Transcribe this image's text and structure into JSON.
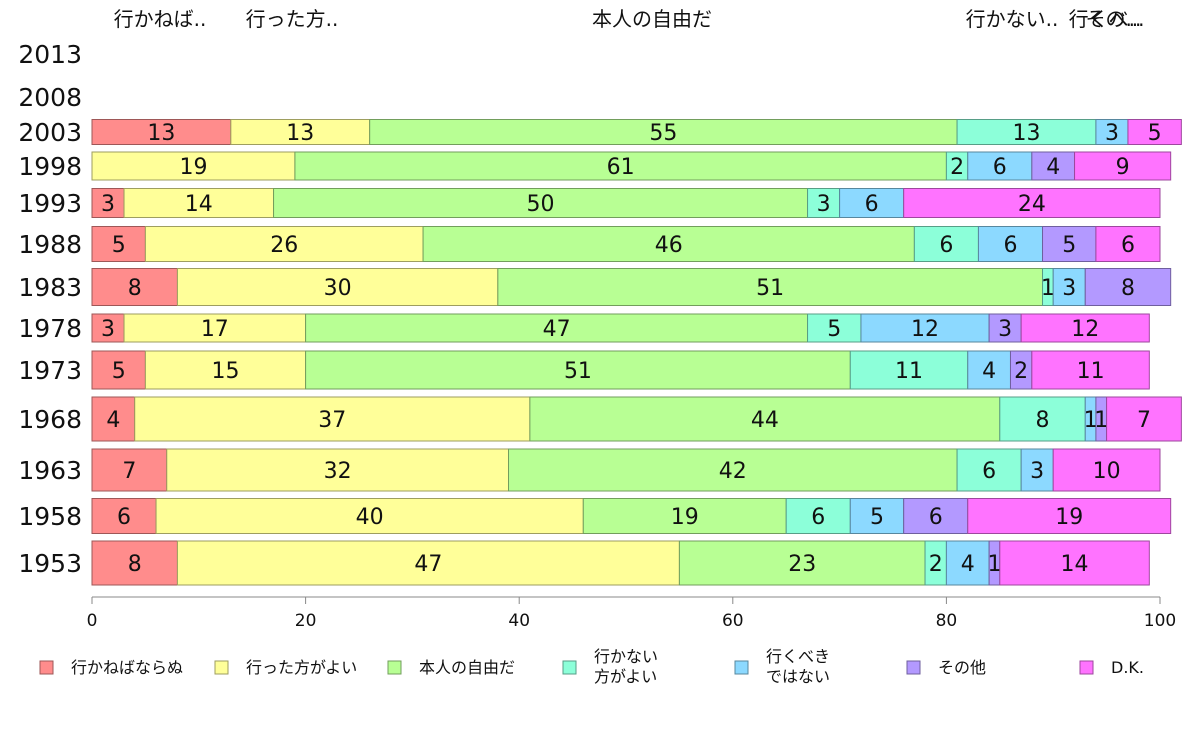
{
  "chart_data": {
    "type": "bar",
    "orientation": "horizontal",
    "stacked": true,
    "title": "",
    "xlabel": "",
    "ylabel": "",
    "xlim": [
      0,
      100
    ],
    "x_ticks": [
      "0",
      "20",
      "40",
      "60",
      "80",
      "100"
    ],
    "top_labels": [
      "行かねば..",
      "行った方..",
      "本人の自由だ",
      "行かない..",
      "行くべ..",
      "その..."
    ],
    "categories": [
      "2013",
      "2008",
      "2003",
      "1998",
      "1993",
      "1988",
      "1983",
      "1978",
      "1973",
      "1968",
      "1963",
      "1958",
      "1953"
    ],
    "series": [
      {
        "name": "行かねばならぬ",
        "color": "#ff8c8c",
        "values": [
          null,
          null,
          13,
          0,
          3,
          5,
          8,
          3,
          5,
          4,
          7,
          6,
          8
        ]
      },
      {
        "name": "行った方がよい",
        "color": "#ffff99",
        "values": [
          null,
          null,
          13,
          19,
          14,
          26,
          30,
          17,
          15,
          37,
          32,
          40,
          47
        ]
      },
      {
        "name": "本人の自由だ",
        "color": "#b8ff94",
        "values": [
          null,
          null,
          55,
          61,
          50,
          46,
          51,
          47,
          51,
          44,
          42,
          19,
          23
        ]
      },
      {
        "name": "行かない\n方がよい",
        "color": "#8cffd9",
        "values": [
          null,
          null,
          13,
          2,
          3,
          6,
          1,
          5,
          11,
          8,
          6,
          6,
          2
        ]
      },
      {
        "name": "行くべき\nではない",
        "color": "#8cd9ff",
        "values": [
          null,
          null,
          3,
          6,
          6,
          6,
          3,
          12,
          4,
          1,
          3,
          5,
          4
        ]
      },
      {
        "name": "その他",
        "color": "#b399ff",
        "values": [
          null,
          null,
          0,
          4,
          0,
          5,
          8,
          3,
          2,
          1,
          0,
          6,
          1
        ]
      },
      {
        "name": "D.K.",
        "color": "#ff73ff",
        "values": [
          null,
          null,
          5,
          9,
          24,
          6,
          0,
          12,
          11,
          7,
          10,
          19,
          14
        ]
      }
    ],
    "legend": "bottom",
    "grid": false
  }
}
